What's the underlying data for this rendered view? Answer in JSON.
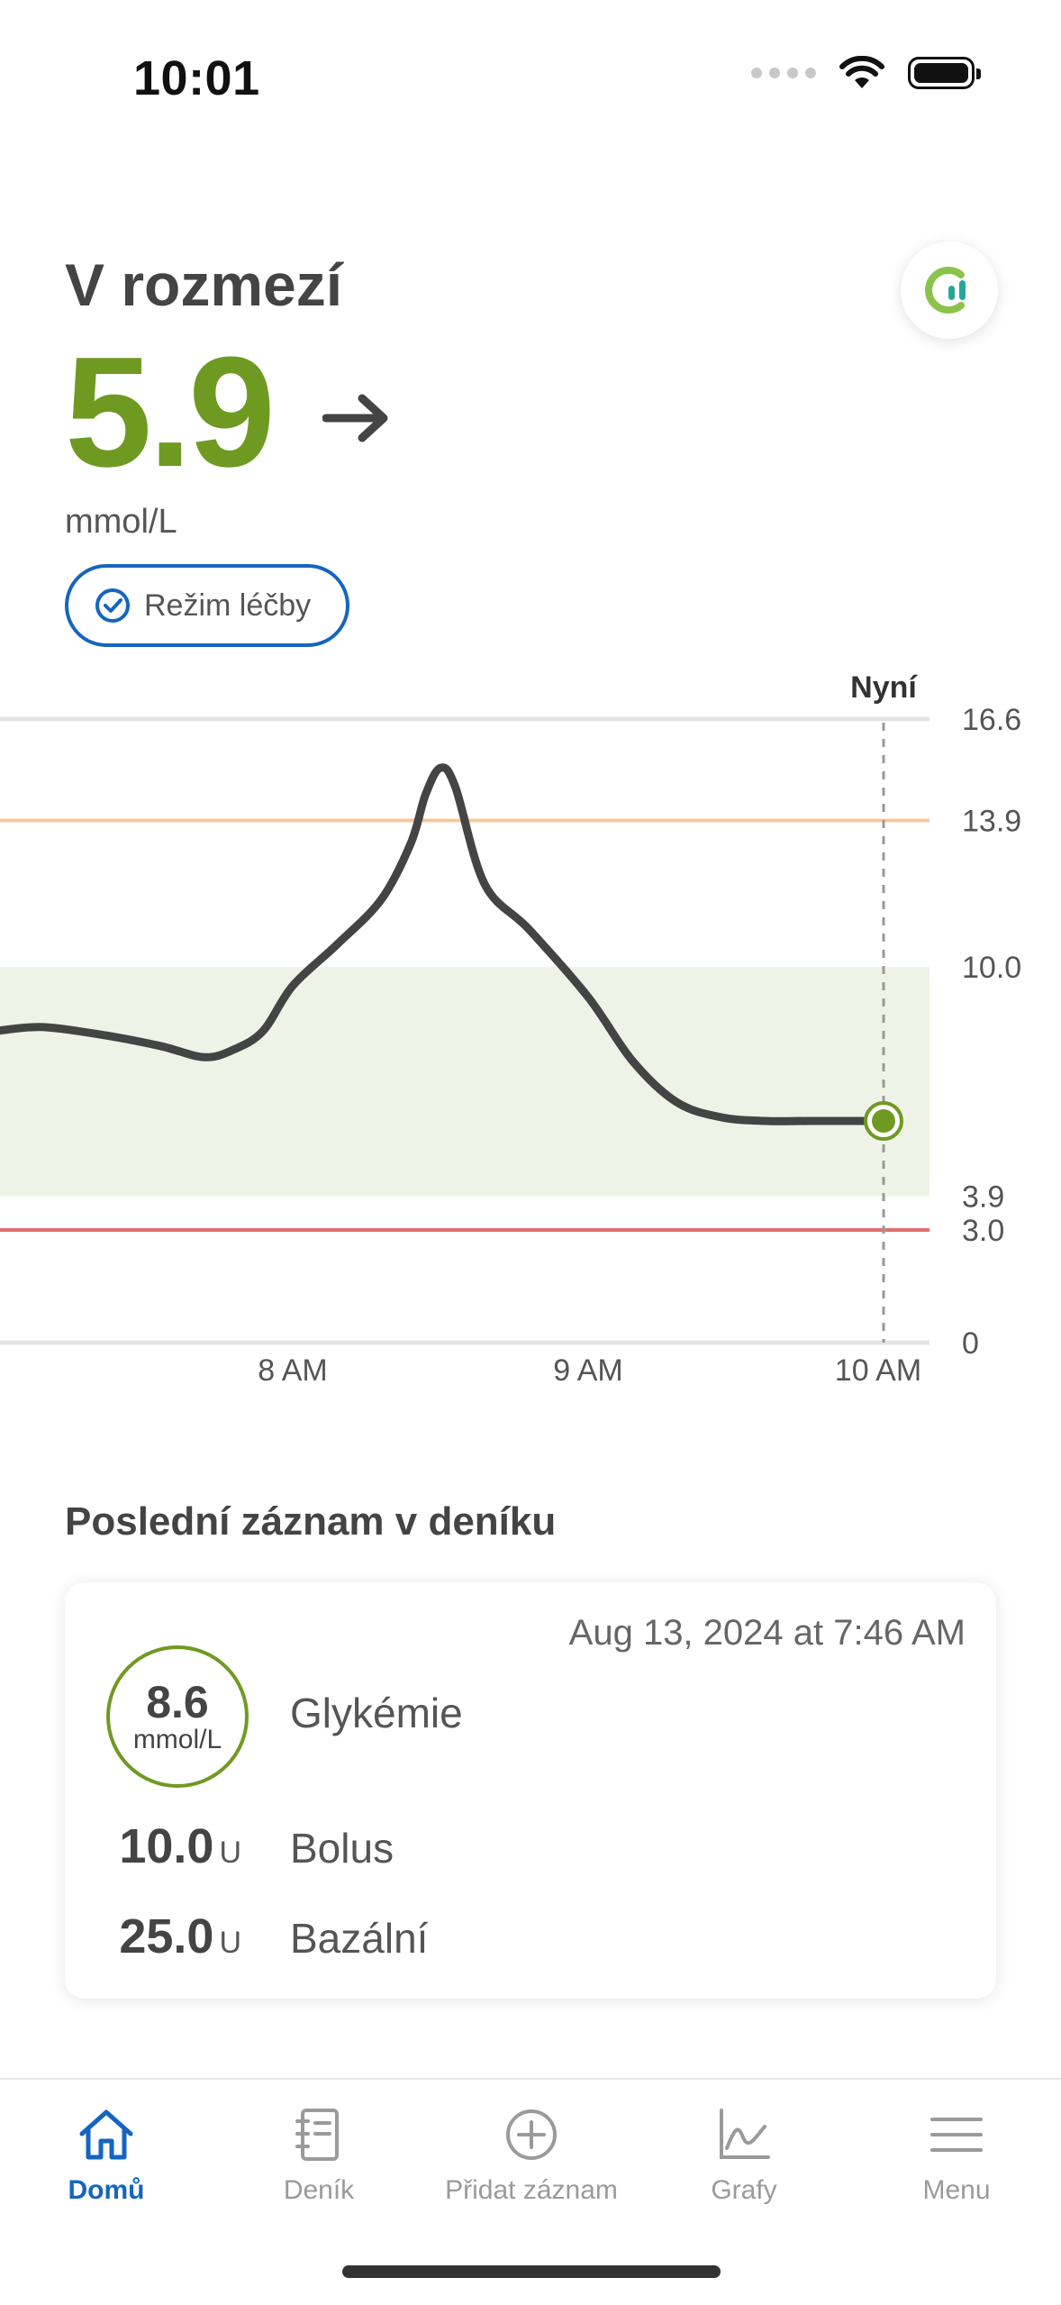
{
  "status_bar": {
    "time": "10:01"
  },
  "header": {
    "range_title": "V rozmezí",
    "glucose_value": "5.9",
    "unit": "mmol/L",
    "mode_label": "Režim léčby",
    "trend": "steady-arrow-icon",
    "logo": "app-logo-icon"
  },
  "chart_data": {
    "type": "line",
    "now_label": "Nyní",
    "y_ticks": [
      "16.6",
      "13.9",
      "10.0",
      "3.9",
      "3.0",
      "0"
    ],
    "x_ticks": [
      "8 AM",
      "9 AM",
      "10 AM"
    ],
    "ylim": [
      0,
      16.6
    ],
    "high_threshold": 13.9,
    "low_threshold": 3.0,
    "target_range": [
      3.9,
      10.0
    ],
    "x": [
      7.0,
      7.15,
      7.35,
      7.55,
      7.7,
      7.8,
      7.9,
      8.0,
      8.15,
      8.3,
      8.4,
      8.45,
      8.5,
      8.55,
      8.65,
      8.8,
      9.0,
      9.15,
      9.3,
      9.45,
      9.6,
      9.75,
      9.9,
      10.0
    ],
    "y": [
      8.3,
      8.4,
      8.2,
      7.9,
      7.6,
      7.8,
      8.3,
      9.5,
      10.6,
      11.8,
      13.3,
      14.6,
      15.3,
      14.8,
      12.2,
      11.0,
      9.2,
      7.5,
      6.4,
      6.0,
      5.9,
      5.9,
      5.9,
      5.9
    ],
    "current_value": 5.9,
    "colors": {
      "line": "#444444",
      "high": "#f5c898",
      "low": "#e07070",
      "range": "#eff3e7",
      "point": "#6f9a22"
    }
  },
  "last_entry": {
    "section_title": "Poslední záznam v deníku",
    "date": "Aug 13, 2024 at 7:46 AM",
    "glucose": {
      "value": "8.6",
      "unit": "mmol/L",
      "label": "Glykémie"
    },
    "bolus": {
      "value": "10.0",
      "unit": "U",
      "label": "Bolus"
    },
    "basal": {
      "value": "25.0",
      "unit": "U",
      "label": "Bazální"
    }
  },
  "tabbar": {
    "items": [
      {
        "label": "Domů",
        "icon": "home-icon",
        "active": true
      },
      {
        "label": "Deník",
        "icon": "notebook-icon",
        "active": false
      },
      {
        "label": "Přidat záznam",
        "icon": "add-circle-icon",
        "active": false
      },
      {
        "label": "Grafy",
        "icon": "chart-icon",
        "active": false
      },
      {
        "label": "Menu",
        "icon": "menu-icon",
        "active": false
      }
    ]
  }
}
